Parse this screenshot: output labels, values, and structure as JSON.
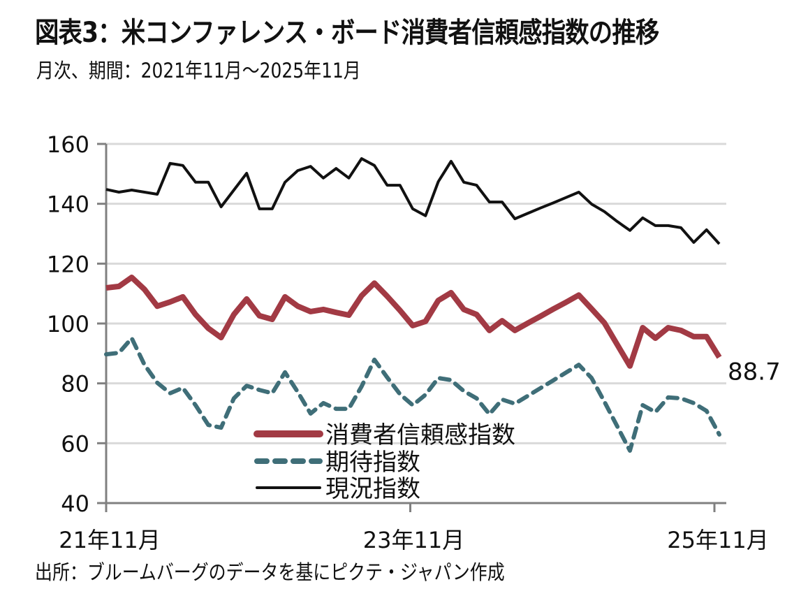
{
  "header": {
    "title": "図表3：米コンファレンス・ボード消費者信頼感指数の推移",
    "subtitle": "月次、期間：2021年11月～2025年11月"
  },
  "footer": {
    "source": "出所：ブルームバーグのデータを基にピクテ・ジャパン作成"
  },
  "colors": {
    "consumer_confidence": "#A23A44",
    "expectations": "#3F6E78",
    "present_situation": "#111111",
    "grid": "#D9D9D9",
    "axis": "#808080"
  },
  "chart_data": {
    "type": "line",
    "title": "米コンファレンス・ボード消費者信頼感指数の推移",
    "xlabel": "",
    "ylabel": "",
    "ylim": [
      40,
      160
    ],
    "yticks": [
      "40",
      "60",
      "80",
      "100",
      "120",
      "140",
      "160"
    ],
    "ytick_values": [
      40,
      60,
      80,
      100,
      120,
      140,
      160
    ],
    "xtick_labels": [
      "21年11月",
      "23年11月",
      "25年11月"
    ],
    "xtick_month_index": [
      0,
      24,
      48
    ],
    "grid": true,
    "legend_position": "bottom-center",
    "x_start": "2021-11",
    "x_end": "2025-11",
    "n_points": 49,
    "series": [
      {
        "name": "消費者信頼感指数",
        "style": "solid-thick",
        "values": [
          111.9,
          112.4,
          115.4,
          111.4,
          105.8,
          107.2,
          108.9,
          103.0,
          98.4,
          95.3,
          103.0,
          108.2,
          102.6,
          101.4,
          108.9,
          105.8,
          104.0,
          104.7,
          103.7,
          102.8,
          109.3,
          113.5,
          109.1,
          104.4,
          99.3,
          100.7,
          107.7,
          110.3,
          104.7,
          103.0,
          97.7,
          100.9,
          97.7,
          100.1,
          102.4,
          104.8,
          107.1,
          109.5,
          104.9,
          100.2,
          93.0,
          85.8,
          98.6,
          95.1,
          98.6,
          97.7,
          95.6,
          95.6,
          88.7
        ]
      },
      {
        "name": "期待指数",
        "style": "dashed",
        "values": [
          89.7,
          90.2,
          95.1,
          86.2,
          80.2,
          76.7,
          78.5,
          72.7,
          66.1,
          65.2,
          75.0,
          79.2,
          77.8,
          76.7,
          83.7,
          77.1,
          69.9,
          73.4,
          71.5,
          71.5,
          79.0,
          87.9,
          82.0,
          76.4,
          72.7,
          76.2,
          81.8,
          81.1,
          77.4,
          75.0,
          69.7,
          74.6,
          73.2,
          75.8,
          78.4,
          81.0,
          83.6,
          86.2,
          81.8,
          73.9,
          65.7,
          57.5,
          72.7,
          70.4,
          75.3,
          75.0,
          73.4,
          70.8,
          62.9
        ]
      },
      {
        "name": "現況指数",
        "style": "solid-thin",
        "values": [
          144.8,
          143.9,
          144.6,
          143.9,
          143.2,
          153.5,
          152.8,
          147.2,
          147.2,
          139.0,
          144.6,
          150.2,
          138.3,
          138.3,
          147.2,
          151.1,
          152.5,
          148.6,
          151.8,
          148.6,
          155.1,
          152.8,
          146.2,
          146.2,
          138.3,
          136.0,
          147.4,
          154.2,
          147.2,
          146.2,
          140.6,
          140.6,
          135.0,
          136.8,
          138.6,
          140.3,
          142.1,
          143.9,
          139.9,
          137.4,
          134.1,
          131.1,
          135.3,
          132.7,
          132.7,
          132.0,
          127.1,
          131.3,
          126.6
        ]
      }
    ],
    "annotations": [
      {
        "series": "消費者信頼感指数",
        "point": "last",
        "text": "88.7"
      }
    ]
  }
}
